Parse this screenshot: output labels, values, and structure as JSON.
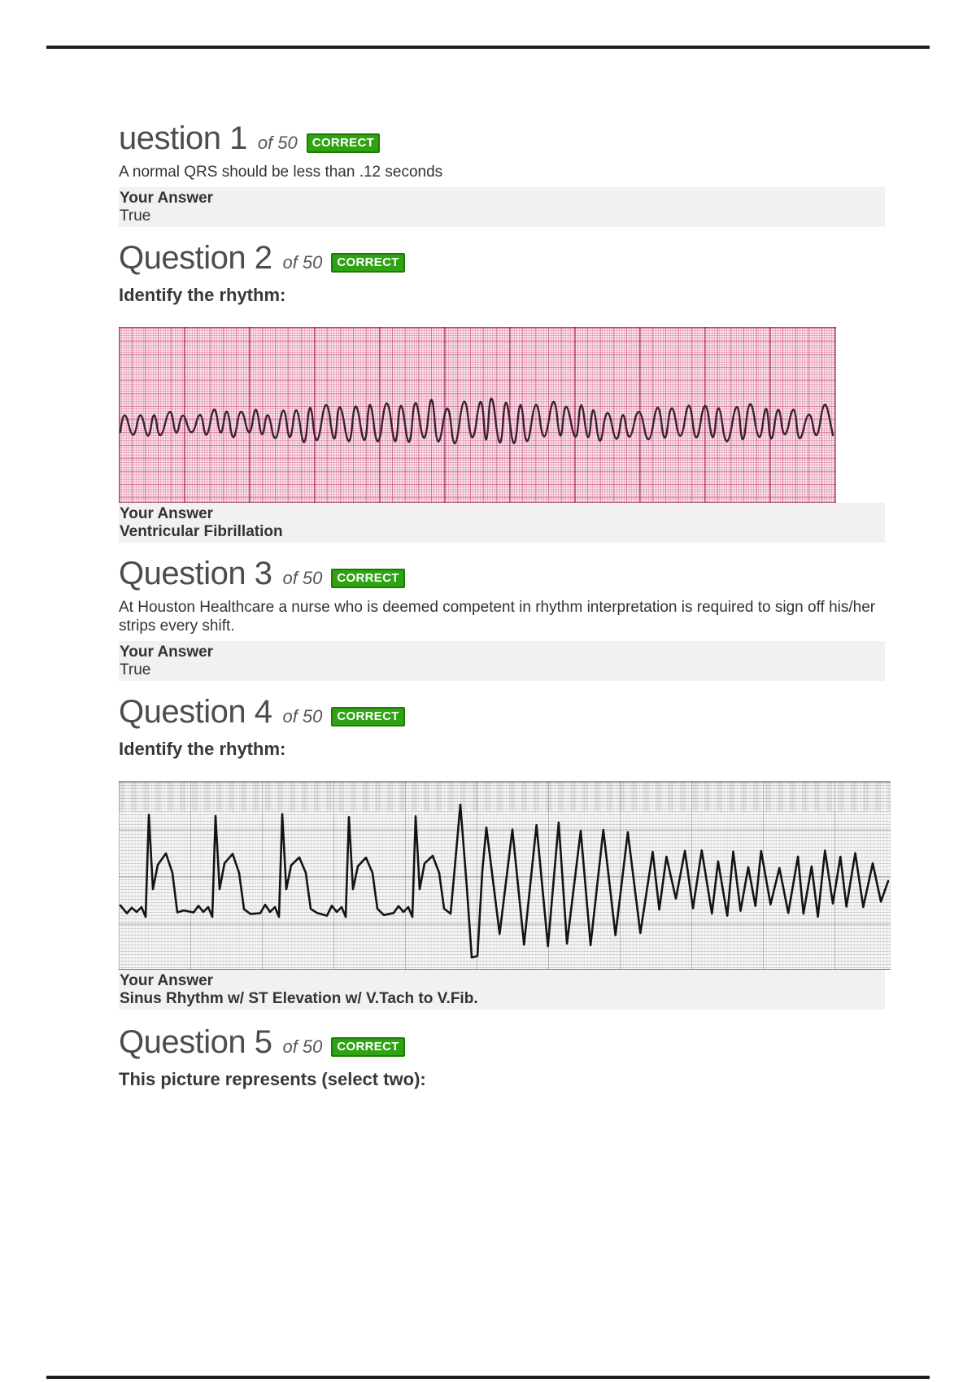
{
  "colors": {
    "badge_bg": "#2fa313",
    "badge_border": "#1c7d00",
    "band_bg": "#f1f1f1",
    "rule": "#1f1f1f"
  },
  "questions": [
    {
      "title": "uestion 1",
      "counter": "of 50",
      "badge": "CORRECT",
      "body": "A normal QRS should be less than .12 seconds",
      "answer_label": "Your Answer",
      "answer": "True"
    },
    {
      "title": "Question 2",
      "counter": "of 50",
      "badge": "CORRECT",
      "prompt": "Identify the rhythm:",
      "image_alt": "Pink ECG paper strip showing a chaotic irregular waveform (ventricular fibrillation)",
      "answer_label": "Your Answer",
      "answer": "Ventricular Fibrillation"
    },
    {
      "title": "Question 3",
      "counter": "of 50",
      "badge": "CORRECT",
      "body": "At Houston Healthcare a nurse who is deemed competent in rhythm interpretation is required to sign off his/her strips every shift.",
      "answer_label": "Your Answer",
      "answer": "True"
    },
    {
      "title": "Question 4",
      "counter": "of 50",
      "badge": "CORRECT",
      "prompt": "Identify the rhythm:",
      "image_alt": "Gray ECG paper strip showing sinus rhythm with ST elevation degenerating into V.Tach then V.Fib",
      "answer_label": "Your Answer",
      "answer": "Sinus Rhythm w/ ST Elevation w/ V.Tach to V.Fib."
    },
    {
      "title": "Question 5",
      "counter": "of 50",
      "badge": "CORRECT",
      "prompt": "This picture represents (select two):"
    }
  ]
}
